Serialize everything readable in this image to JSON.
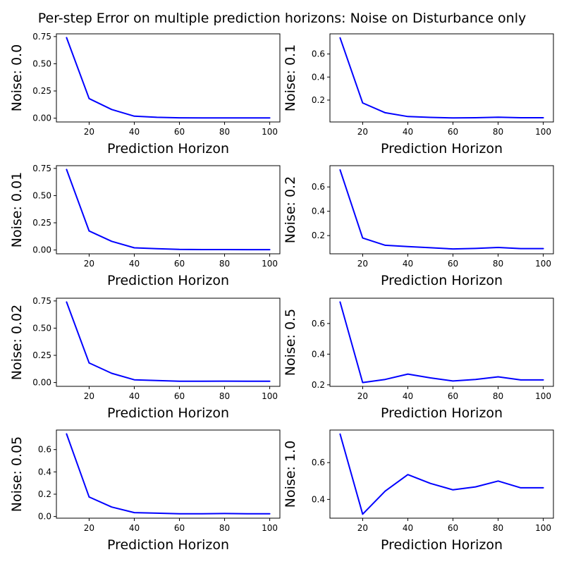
{
  "title": "Per-step Error on multiple prediction horizons: Noise on Disturbance only",
  "line_color": "#0000ff",
  "chart_data": [
    {
      "type": "line",
      "ylabel": "Noise: 0.0",
      "xlabel": "Prediction Horizon",
      "x": [
        10,
        20,
        30,
        40,
        50,
        60,
        70,
        80,
        90,
        100
      ],
      "series": [
        {
          "values": [
            0.74,
            0.18,
            0.08,
            0.018,
            0.008,
            0.003,
            0.002,
            0.002,
            0.002,
            0.002
          ]
        }
      ],
      "xlim": [
        5.5,
        104.5
      ],
      "ylim": [
        -0.035,
        0.775
      ],
      "xticks": [
        20,
        40,
        60,
        80,
        100
      ],
      "yticks": [
        0.0,
        0.25,
        0.5,
        0.75
      ],
      "ytick_labels": [
        "0.00",
        "0.25",
        "0.50",
        "0.75"
      ]
    },
    {
      "type": "line",
      "ylabel": "Noise: 0.1",
      "xlabel": "Prediction Horizon",
      "x": [
        10,
        20,
        30,
        40,
        50,
        60,
        70,
        80,
        90,
        100
      ],
      "series": [
        {
          "values": [
            0.74,
            0.175,
            0.09,
            0.057,
            0.05,
            0.045,
            0.047,
            0.051,
            0.047,
            0.047
          ]
        }
      ],
      "xlim": [
        5.5,
        104.5
      ],
      "ylim": [
        0.01,
        0.775
      ],
      "xticks": [
        20,
        40,
        60,
        80,
        100
      ],
      "yticks": [
        0.2,
        0.4,
        0.6
      ],
      "ytick_labels": [
        "0.2",
        "0.4",
        "0.6"
      ]
    },
    {
      "type": "line",
      "ylabel": "Noise: 0.01",
      "xlabel": "Prediction Horizon",
      "x": [
        10,
        20,
        30,
        40,
        50,
        60,
        70,
        80,
        90,
        100
      ],
      "series": [
        {
          "values": [
            0.74,
            0.175,
            0.08,
            0.02,
            0.012,
            0.005,
            0.004,
            0.004,
            0.003,
            0.003
          ]
        }
      ],
      "xlim": [
        5.5,
        104.5
      ],
      "ylim": [
        -0.035,
        0.775
      ],
      "xticks": [
        20,
        40,
        60,
        80,
        100
      ],
      "yticks": [
        0.0,
        0.25,
        0.5,
        0.75
      ],
      "ytick_labels": [
        "0.00",
        "0.25",
        "0.50",
        "0.75"
      ]
    },
    {
      "type": "line",
      "ylabel": "Noise: 0.2",
      "xlabel": "Prediction Horizon",
      "x": [
        10,
        20,
        30,
        40,
        50,
        60,
        70,
        80,
        90,
        100
      ],
      "series": [
        {
          "values": [
            0.74,
            0.18,
            0.12,
            0.11,
            0.1,
            0.09,
            0.094,
            0.102,
            0.093,
            0.093
          ]
        }
      ],
      "xlim": [
        5.5,
        104.5
      ],
      "ylim": [
        0.05,
        0.775
      ],
      "xticks": [
        20,
        40,
        60,
        80,
        100
      ],
      "yticks": [
        0.2,
        0.4,
        0.6
      ],
      "ytick_labels": [
        "0.2",
        "0.4",
        "0.6"
      ]
    },
    {
      "type": "line",
      "ylabel": "Noise: 0.02",
      "xlabel": "Prediction Horizon",
      "x": [
        10,
        20,
        30,
        40,
        50,
        60,
        70,
        80,
        90,
        100
      ],
      "series": [
        {
          "values": [
            0.74,
            0.18,
            0.085,
            0.025,
            0.018,
            0.012,
            0.012,
            0.013,
            0.012,
            0.012
          ]
        }
      ],
      "xlim": [
        5.5,
        104.5
      ],
      "ylim": [
        -0.035,
        0.775
      ],
      "xticks": [
        20,
        40,
        60,
        80,
        100
      ],
      "yticks": [
        0.0,
        0.25,
        0.5,
        0.75
      ],
      "ytick_labels": [
        "0.00",
        "0.25",
        "0.50",
        "0.75"
      ]
    },
    {
      "type": "line",
      "ylabel": "Noise: 0.5",
      "xlabel": "Prediction Horizon",
      "x": [
        10,
        20,
        30,
        40,
        50,
        60,
        70,
        80,
        90,
        100
      ],
      "series": [
        {
          "values": [
            0.74,
            0.215,
            0.235,
            0.27,
            0.245,
            0.225,
            0.235,
            0.252,
            0.232,
            0.232
          ]
        }
      ],
      "xlim": [
        5.5,
        104.5
      ],
      "ylim": [
        0.19,
        0.765
      ],
      "xticks": [
        20,
        40,
        60,
        80,
        100
      ],
      "yticks": [
        0.2,
        0.4,
        0.6
      ],
      "ytick_labels": [
        "0.2",
        "0.4",
        "0.6"
      ]
    },
    {
      "type": "line",
      "ylabel": "Noise: 0.05",
      "xlabel": "Prediction Horizon",
      "x": [
        10,
        20,
        30,
        40,
        50,
        60,
        70,
        80,
        90,
        100
      ],
      "series": [
        {
          "values": [
            0.74,
            0.175,
            0.085,
            0.035,
            0.03,
            0.025,
            0.025,
            0.027,
            0.024,
            0.024
          ]
        }
      ],
      "xlim": [
        5.5,
        104.5
      ],
      "ylim": [
        -0.015,
        0.775
      ],
      "xticks": [
        20,
        40,
        60,
        80,
        100
      ],
      "yticks": [
        0.0,
        0.2,
        0.4,
        0.6
      ],
      "ytick_labels": [
        "0.0",
        "0.2",
        "0.4",
        "0.6"
      ]
    },
    {
      "type": "line",
      "ylabel": "Noise: 1.0",
      "xlabel": "Prediction Horizon",
      "x": [
        10,
        20,
        30,
        40,
        50,
        60,
        70,
        80,
        90,
        100
      ],
      "series": [
        {
          "values": [
            0.755,
            0.32,
            0.445,
            0.535,
            0.487,
            0.452,
            0.468,
            0.5,
            0.463,
            0.463
          ]
        }
      ],
      "xlim": [
        5.5,
        104.5
      ],
      "ylim": [
        0.298,
        0.777
      ],
      "xticks": [
        20,
        40,
        60,
        80,
        100
      ],
      "yticks": [
        0.4,
        0.6
      ],
      "ytick_labels": [
        "0.4",
        "0.6"
      ]
    }
  ]
}
